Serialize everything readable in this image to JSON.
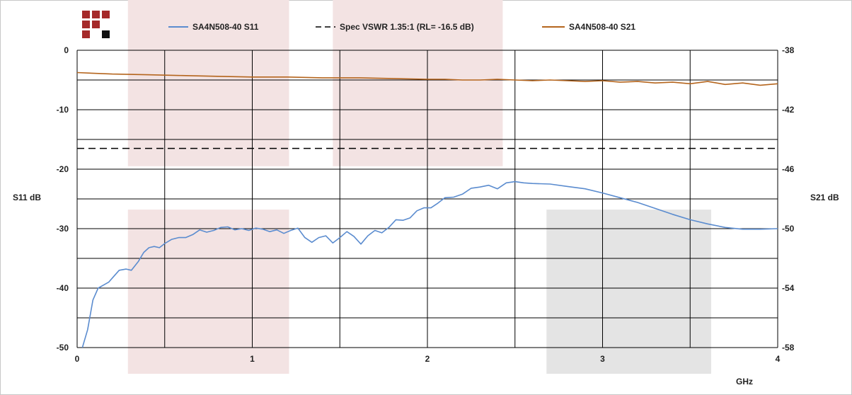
{
  "colors": {
    "s11": "#5b8ccf",
    "s21": "#b5651d",
    "spec": "#000000",
    "band_pink": "#f3e3e3",
    "band_gray": "#e4e4e4",
    "logo_red": "#a52a2a",
    "logo_black": "#111111"
  },
  "icons": {
    "logo": "company-logo-grid-icon"
  },
  "chart_data": {
    "type": "line",
    "xlabel": "GHz",
    "ylabel_left": "S11 dB",
    "ylabel_right": "S21 dB",
    "xlim": [
      0,
      4
    ],
    "ylim_left": [
      -50,
      0
    ],
    "ylim_right": [
      -58,
      -38
    ],
    "x_ticks": [
      "0",
      "1",
      "2",
      "3",
      "4"
    ],
    "y_ticks_left": [
      "0",
      "-10",
      "-20",
      "-30",
      "-40",
      "-50"
    ],
    "y_ticks_right": [
      "-38",
      "-42",
      "-46",
      "-50",
      "-54",
      "-58"
    ],
    "grid": true,
    "legend_position": "top",
    "legend": [
      "SA4N508-40 S11",
      "Spec VSWR 1.35:1 (RL= -16.5 dB)",
      "SA4N508-40 S21"
    ],
    "shaded_bands": [
      {
        "x": [
          0.29,
          1.21
        ],
        "y": [
          -19.5,
          0
        ],
        "color": "pink"
      },
      {
        "x": [
          1.46,
          2.43
        ],
        "y": [
          -19.5,
          0
        ],
        "color": "pink"
      },
      {
        "x": [
          0.29,
          1.21
        ],
        "y": [
          -50,
          -26.8
        ],
        "color": "pink"
      },
      {
        "x": [
          2.68,
          3.62
        ],
        "y": [
          -50,
          -26.8
        ],
        "color": "gray"
      }
    ],
    "series": [
      {
        "name": "SA4N508-40 S11",
        "axis": "left",
        "style": "solid",
        "x": [
          0.03,
          0.06,
          0.09,
          0.12,
          0.15,
          0.18,
          0.21,
          0.24,
          0.28,
          0.31,
          0.35,
          0.38,
          0.41,
          0.44,
          0.47,
          0.5,
          0.54,
          0.58,
          0.62,
          0.66,
          0.7,
          0.74,
          0.78,
          0.82,
          0.86,
          0.9,
          0.94,
          0.98,
          1.02,
          1.06,
          1.1,
          1.14,
          1.18,
          1.22,
          1.26,
          1.3,
          1.34,
          1.38,
          1.42,
          1.46,
          1.5,
          1.54,
          1.58,
          1.62,
          1.66,
          1.7,
          1.74,
          1.78,
          1.82,
          1.86,
          1.9,
          1.94,
          1.98,
          2.02,
          2.06,
          2.1,
          2.15,
          2.2,
          2.25,
          2.3,
          2.35,
          2.4,
          2.45,
          2.5,
          2.55,
          2.6,
          2.7,
          2.8,
          2.9,
          3.0,
          3.1,
          3.2,
          3.3,
          3.4,
          3.5,
          3.6,
          3.7,
          3.8,
          3.9,
          4.0
        ],
        "y": [
          -50,
          -47,
          -42,
          -40,
          -39.5,
          -39,
          -38,
          -37,
          -36.8,
          -37,
          -35.5,
          -34,
          -33.2,
          -33,
          -33.2,
          -32.5,
          -31.8,
          -31.5,
          -31.5,
          -31,
          -30.2,
          -30.6,
          -30.3,
          -29.8,
          -29.7,
          -30.2,
          -30,
          -30.3,
          -29.9,
          -30.1,
          -30.5,
          -30.2,
          -30.8,
          -30.3,
          -29.9,
          -31.5,
          -32.3,
          -31.5,
          -31.2,
          -32.4,
          -31.5,
          -30.5,
          -31.3,
          -32.6,
          -31.2,
          -30.3,
          -30.7,
          -29.8,
          -28.5,
          -28.6,
          -28.2,
          -27,
          -26.5,
          -26.5,
          -25.7,
          -24.8,
          -24.7,
          -24.2,
          -23.2,
          -23,
          -22.7,
          -23.3,
          -22.3,
          -22.1,
          -22.3,
          -22.4,
          -22.5,
          -22.9,
          -23.3,
          -24.0,
          -24.8,
          -25.6,
          -26.6,
          -27.6,
          -28.5,
          -29.2,
          -29.8,
          -30.1,
          -30.1,
          -30.0
        ]
      },
      {
        "name": "Spec VSWR 1.35:1 (RL= -16.5 dB)",
        "axis": "left",
        "style": "dashed",
        "x": [
          0,
          4
        ],
        "y": [
          -16.5,
          -16.5
        ]
      },
      {
        "name": "SA4N508-40 S21",
        "axis": "right",
        "style": "solid",
        "x": [
          0.0,
          0.2,
          0.4,
          0.6,
          0.8,
          1.0,
          1.2,
          1.4,
          1.6,
          1.8,
          2.0,
          2.1,
          2.2,
          2.3,
          2.4,
          2.5,
          2.6,
          2.7,
          2.8,
          2.9,
          3.0,
          3.1,
          3.2,
          3.3,
          3.4,
          3.5,
          3.6,
          3.7,
          3.8,
          3.9,
          4.0
        ],
        "y": [
          -39.5,
          -39.6,
          -39.65,
          -39.7,
          -39.75,
          -39.8,
          -39.8,
          -39.85,
          -39.85,
          -39.9,
          -39.95,
          -39.95,
          -40.0,
          -40.0,
          -39.95,
          -40.0,
          -40.05,
          -40.0,
          -40.05,
          -40.1,
          -40.05,
          -40.15,
          -40.1,
          -40.2,
          -40.15,
          -40.25,
          -40.1,
          -40.3,
          -40.2,
          -40.35,
          -40.25
        ]
      }
    ]
  }
}
